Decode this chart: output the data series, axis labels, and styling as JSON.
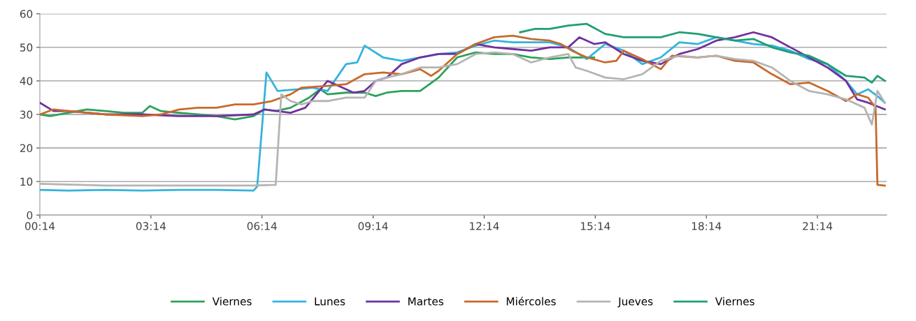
{
  "chart_data": {
    "type": "line",
    "xlim": [
      0.23,
      23.1
    ],
    "xticks": [
      {
        "value": 0.23,
        "label": "00:14"
      },
      {
        "value": 3.23,
        "label": "03:14"
      },
      {
        "value": 6.23,
        "label": "06:14"
      },
      {
        "value": 9.23,
        "label": "09:14"
      },
      {
        "value": 12.23,
        "label": "12:14"
      },
      {
        "value": 15.23,
        "label": "15:14"
      },
      {
        "value": 18.23,
        "label": "18:14"
      },
      {
        "value": 21.23,
        "label": "21:14"
      }
    ],
    "ylim": [
      0,
      60
    ],
    "yticks": [
      0,
      10,
      20,
      30,
      40,
      50,
      60
    ],
    "grid": "y",
    "legend": "bottom",
    "marker": "none",
    "line_style": "solid",
    "series": [
      {
        "name": "Viernes",
        "color": "#2ea05a",
        "x": [
          0.23,
          0.5,
          1,
          1.5,
          2,
          2.5,
          3,
          3.2,
          3.5,
          4,
          4.5,
          5,
          5.5,
          6,
          6.3,
          6.6,
          7,
          7.5,
          7.8,
          8,
          8.5,
          9,
          9.3,
          9.6,
          10,
          10.5,
          11,
          11.5,
          12,
          12.5,
          13,
          13.5,
          14,
          14.5,
          15,
          15.2
        ],
        "values": [
          30,
          29.5,
          30.5,
          31.5,
          31,
          30.5,
          30.5,
          32.5,
          31,
          30.5,
          30,
          29.5,
          28.5,
          29.5,
          31.5,
          31,
          32,
          35,
          37.5,
          36,
          36.5,
          36.5,
          35.5,
          36.5,
          37,
          37,
          41,
          47,
          48.5,
          48,
          48,
          47,
          46.5,
          47,
          47,
          47
        ]
      },
      {
        "name": "Lunes",
        "color": "#33b3dd",
        "x": [
          0.23,
          1,
          2,
          3,
          4,
          5,
          6,
          6.1,
          6.35,
          6.65,
          7.2,
          7.6,
          8,
          8.5,
          8.8,
          9,
          9.5,
          10,
          10.5,
          11,
          11.5,
          12,
          12.5,
          13,
          13.5,
          14,
          14.5,
          15,
          15.5,
          16,
          16.5,
          17,
          17.5,
          18,
          18.5,
          19,
          19.5,
          20,
          20.5,
          21,
          21.5,
          22,
          22.3,
          22.6,
          22.9,
          23.05
        ],
        "values": [
          7.5,
          7.3,
          7.5,
          7.3,
          7.5,
          7.5,
          7.3,
          8.5,
          42.5,
          37,
          37.5,
          38,
          37,
          45,
          45.5,
          50.5,
          47,
          46,
          47,
          48,
          48.5,
          50.5,
          52,
          51.5,
          51.5,
          51.5,
          50,
          46.5,
          51,
          49,
          45,
          47,
          51.5,
          51,
          53,
          52,
          51,
          50.5,
          49,
          46.5,
          45,
          40,
          36,
          37.5,
          35,
          33.5
        ]
      },
      {
        "name": "Martes",
        "color": "#7030a0",
        "x": [
          0.23,
          0.6,
          1,
          2,
          3,
          4,
          5,
          6,
          6.3,
          7,
          7.4,
          8,
          8.4,
          8.7,
          9,
          9.3,
          9.6,
          10,
          10.5,
          11,
          11.5,
          12,
          12.5,
          13,
          13.5,
          14,
          14.5,
          14.8,
          15.2,
          15.5,
          16,
          16.5,
          17,
          17.5,
          18,
          18.5,
          19,
          19.5,
          20,
          20.5,
          21,
          21.5,
          22,
          22.3,
          22.6,
          23.05
        ],
        "values": [
          33.5,
          31,
          31,
          30,
          30,
          29.5,
          29.5,
          30,
          31.5,
          30.5,
          32,
          40,
          38,
          36.5,
          37,
          40,
          41,
          45,
          47,
          48,
          48,
          51,
          50,
          49.5,
          49,
          50,
          50,
          53,
          51,
          51.5,
          48,
          46,
          45,
          48,
          49.5,
          52,
          53,
          54.5,
          53,
          50,
          47,
          44,
          40,
          34.5,
          33.5,
          31.5
        ]
      },
      {
        "name": "Miércoles",
        "color": "#c8692a",
        "x": [
          0.23,
          0.6,
          1,
          2,
          3,
          3.5,
          4,
          4.5,
          5,
          5.5,
          6,
          6.5,
          7,
          7.3,
          8,
          8.5,
          9,
          9.5,
          10,
          10.5,
          10.8,
          11,
          11.5,
          12,
          12.5,
          13,
          13.5,
          14,
          14.3,
          14.6,
          15,
          15.5,
          15.8,
          16,
          16.5,
          17,
          17.3,
          18,
          18.5,
          19,
          19.5,
          20,
          20.5,
          21,
          21.5,
          22,
          22.3,
          22.6,
          22.8,
          22.85,
          23.05
        ],
        "values": [
          30,
          31.5,
          31,
          30,
          29.5,
          30,
          31.5,
          32,
          32,
          33,
          33,
          34,
          36,
          38,
          38.5,
          39,
          42,
          42.5,
          42,
          43.5,
          41.5,
          43,
          48,
          51,
          53,
          53.5,
          52.5,
          52,
          51,
          49,
          47,
          45.5,
          46,
          49,
          46.5,
          43.5,
          47.5,
          47,
          47.5,
          46,
          45.5,
          42,
          39,
          39.5,
          37,
          34,
          36,
          35,
          32,
          9,
          8.8
        ]
      },
      {
        "name": "Jueves",
        "color": "#b4b4b4",
        "x": [
          0.23,
          2,
          4,
          6,
          6.6,
          6.75,
          7,
          7.3,
          7.6,
          8,
          8.5,
          9,
          9.3,
          9.6,
          10,
          10.5,
          11,
          11.5,
          12,
          12.5,
          13,
          13.5,
          14,
          14.5,
          14.7,
          15,
          15.5,
          16,
          16.5,
          17,
          17.5,
          18,
          18.5,
          19,
          19.5,
          20,
          20.5,
          21,
          21.5,
          22,
          22.5,
          22.7,
          22.85,
          23.05
        ],
        "values": [
          9.3,
          8.8,
          8.8,
          8.8,
          9,
          36,
          34,
          33,
          34,
          34,
          35,
          35,
          40,
          41,
          42,
          44,
          44,
          45,
          48,
          48.5,
          48,
          45.5,
          47,
          48,
          44,
          43,
          41,
          40.5,
          42,
          46,
          47.5,
          47,
          47.5,
          46.5,
          46,
          44,
          40,
          37,
          36,
          34.5,
          32,
          27,
          37,
          33.5
        ]
      },
      {
        "name": "Viernes",
        "color": "#1f9e74",
        "x": [
          13.2,
          13.6,
          14,
          14.5,
          15,
          15.5,
          16,
          16.5,
          17,
          17.5,
          18,
          18.5,
          19,
          19.5,
          20,
          20.5,
          21,
          21.5,
          22,
          22.5,
          22.7,
          22.85,
          23.05
        ],
        "values": [
          54.5,
          55.5,
          55.5,
          56.5,
          57,
          54,
          53,
          53,
          53,
          54.5,
          54,
          53,
          52,
          52.5,
          50,
          48.5,
          47.5,
          45,
          41.5,
          41,
          39.5,
          41.5,
          40
        ]
      }
    ]
  }
}
